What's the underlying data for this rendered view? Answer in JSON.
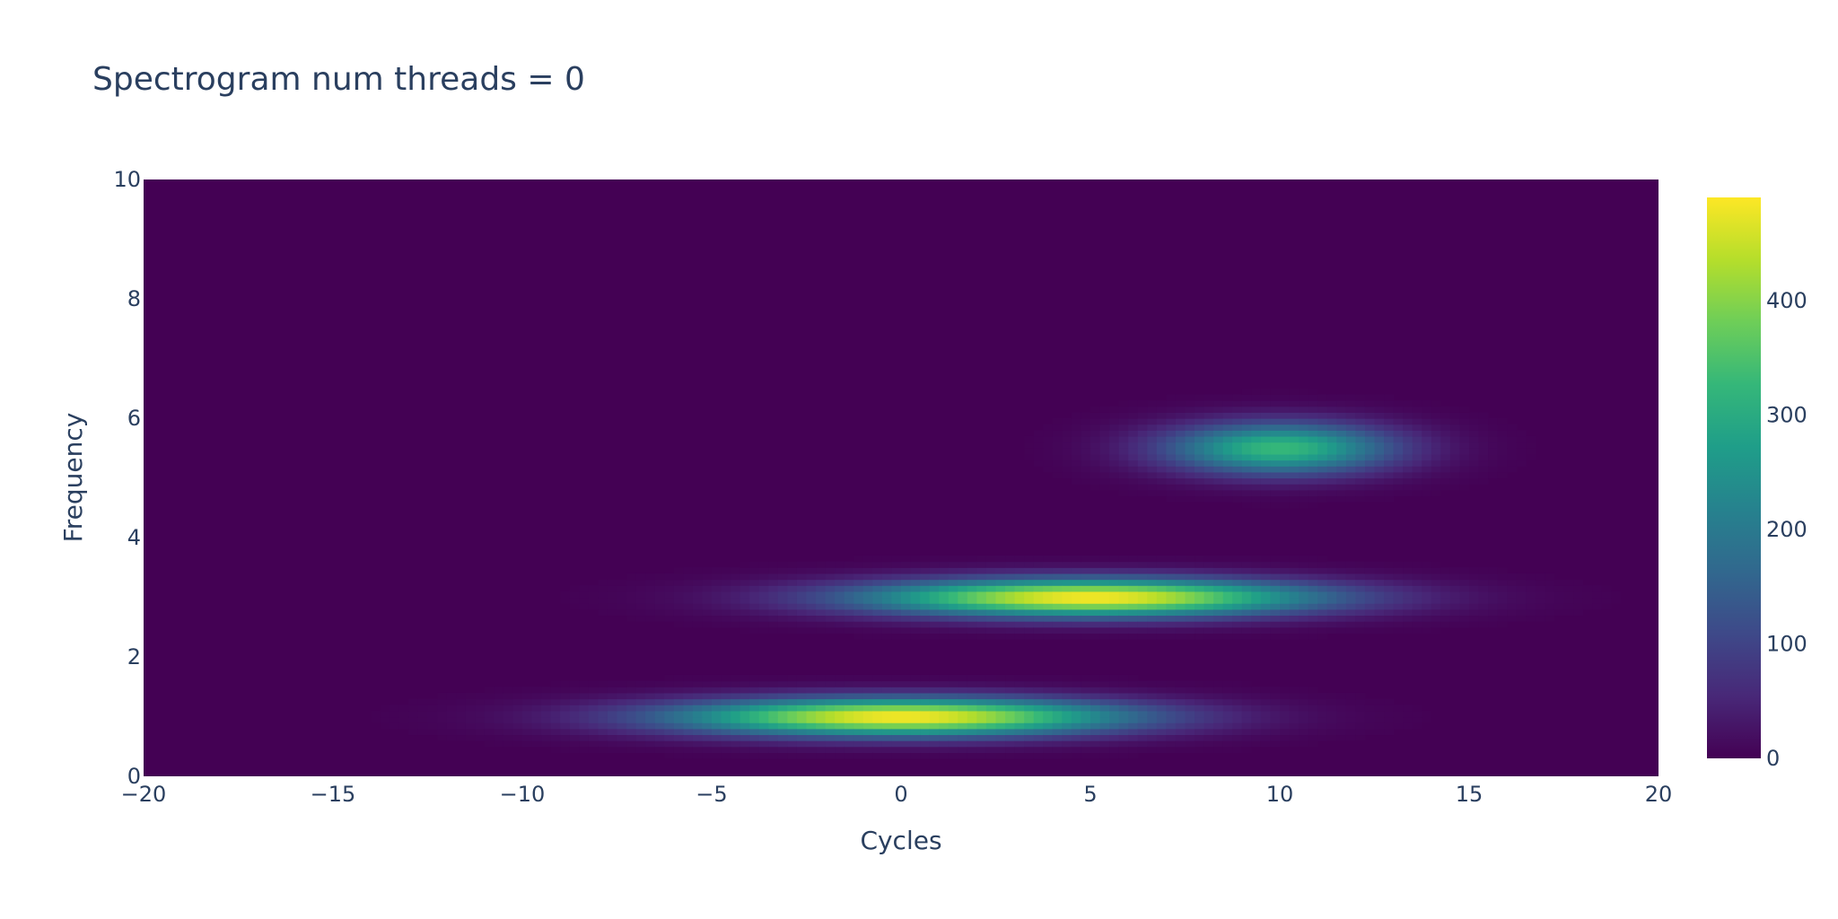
{
  "chart_data": {
    "type": "heatmap",
    "title": "Spectrogram num threads = 0",
    "xlabel": "Cycles",
    "ylabel": "Frequency",
    "xlim": [
      -20,
      20
    ],
    "ylim": [
      0,
      10
    ],
    "x_ticks": [
      {
        "value": -20,
        "label": "−20"
      },
      {
        "value": -15,
        "label": "−15"
      },
      {
        "value": -10,
        "label": "−10"
      },
      {
        "value": -5,
        "label": "−5"
      },
      {
        "value": 0,
        "label": "0"
      },
      {
        "value": 5,
        "label": "5"
      },
      {
        "value": 10,
        "label": "10"
      },
      {
        "value": 15,
        "label": "15"
      },
      {
        "value": 20,
        "label": "20"
      }
    ],
    "y_ticks": [
      {
        "value": 0,
        "label": "0"
      },
      {
        "value": 2,
        "label": "2"
      },
      {
        "value": 4,
        "label": "4"
      },
      {
        "value": 6,
        "label": "6"
      },
      {
        "value": 8,
        "label": "8"
      },
      {
        "value": 10,
        "label": "10"
      }
    ],
    "colorscale": "Viridis",
    "zlim": [
      0,
      490
    ],
    "colorbar_ticks": [
      {
        "value": 0,
        "label": "0"
      },
      {
        "value": 100,
        "label": "100"
      },
      {
        "value": 200,
        "label": "200"
      },
      {
        "value": 300,
        "label": "300"
      },
      {
        "value": 400,
        "label": "400"
      }
    ],
    "components": [
      {
        "center_cycles": 0,
        "center_frequency": 1,
        "peak": 490,
        "spread_cycles": 4.2,
        "spread_frequency": 0.22
      },
      {
        "center_cycles": 5,
        "center_frequency": 3,
        "peak": 490,
        "spread_cycles": 4.2,
        "spread_frequency": 0.22
      },
      {
        "center_cycles": 10,
        "center_frequency": 5.5,
        "peak": 330,
        "spread_cycles": 2.1,
        "spread_frequency": 0.3
      }
    ],
    "grid": false,
    "legend": "none"
  }
}
